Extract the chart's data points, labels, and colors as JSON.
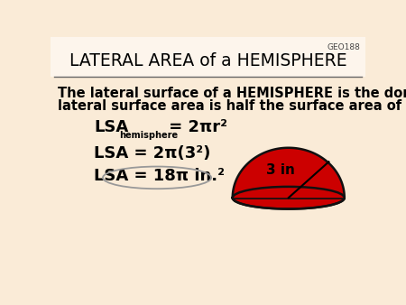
{
  "bg_color": "#faebd7",
  "title_bg_color": "#fdf5ec",
  "title": "LATERAL AREA of a HEMISPHERE",
  "geo_id": "GEO188",
  "desc1": "The lateral surface of a HEMISPHERE is the dome.  The",
  "desc2": "lateral surface area is half the surface area of a sphere.",
  "dome_color": "#cc0000",
  "dome_edge_color": "#111111",
  "label_3in": "3 in",
  "separator_color": "#666666"
}
